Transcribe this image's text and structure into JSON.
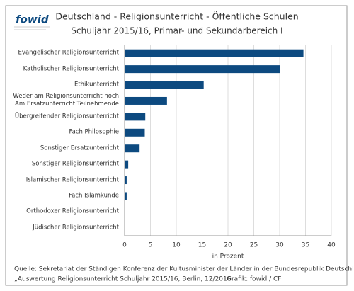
{
  "logo": "fowid",
  "chart_data": {
    "type": "bar",
    "orientation": "horizontal",
    "title": "Deutschland - Religionsunterricht - Öffentliche Schulen",
    "subtitle": "Schuljahr 2015/16, Primar- und Sekundarbereich I",
    "categories": [
      "Evangelischer Religionsunterricht",
      "Katholischer Religionsunterricht",
      "Ethikunterricht",
      "Weder am Religionsunterricht noch\nAm Ersatzunterricht Teilnehmende",
      "Übergreifender Religionsunterricht",
      "Fach Philosophie",
      "Sonstiger Ersatzunterricht",
      "Sonstiger Religionsunterricht",
      "Islamischer Religionsunterricht",
      "Fach Islamkunde",
      "Orthodoxer Religionsunterricht",
      "Jüdischer Religionsunterricht"
    ],
    "values": [
      34.6,
      30.1,
      15.3,
      8.2,
      4.0,
      3.9,
      2.9,
      0.7,
      0.4,
      0.4,
      0.1,
      0
    ],
    "color": "#0d4a80",
    "xlim": [
      0,
      40
    ],
    "xticks": [
      0,
      5,
      10,
      15,
      20,
      25,
      30,
      35,
      40
    ],
    "xlabel": "in Prozent",
    "grid": true
  },
  "footer": [
    "Quelle: Sekretariat der Ständigen Konferenz der Kultusminister der Länder in der Bundesrepublik Deutschland,",
    "„Auswertung Religionsunterricht Schuljahr 2015/16, Berlin, 12/2016"
  ],
  "credit": "Grafik: fowid / CF"
}
